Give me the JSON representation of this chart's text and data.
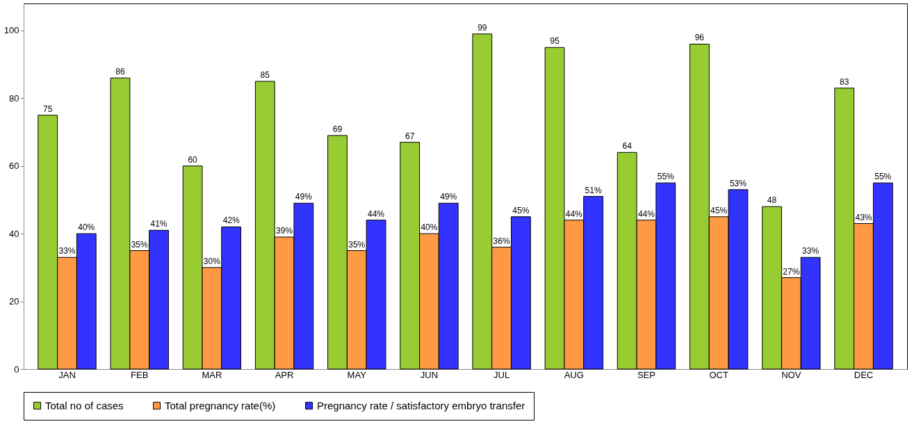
{
  "chart_data": {
    "type": "bar",
    "categories": [
      "JAN",
      "FEB",
      "MAR",
      "APR",
      "MAY",
      "JUN",
      "JUL",
      "AUG",
      "SEP",
      "OCT",
      "NOV",
      "DEC"
    ],
    "series": [
      {
        "name": "Total no of cases",
        "color": "#99cc33",
        "values": [
          75,
          86,
          60,
          85,
          69,
          67,
          99,
          95,
          64,
          96,
          48,
          83
        ],
        "value_labels": [
          "75",
          "86",
          "60",
          "85",
          "69",
          "67",
          "99",
          "95",
          "64",
          "96",
          "48",
          "83"
        ]
      },
      {
        "name": "Total pregnancy rate(%)",
        "color": "#ff9944",
        "values": [
          33,
          35,
          30,
          39,
          35,
          40,
          36,
          44,
          44,
          45,
          27,
          43
        ],
        "value_labels": [
          "33%",
          "35%",
          "30%",
          "39%",
          "35%",
          "40%",
          "36%",
          "44%",
          "44%",
          "45%",
          "27%",
          "43%"
        ]
      },
      {
        "name": "Pregnancy rate / satisfactory embryo transfer",
        "color": "#3333ff",
        "values": [
          40,
          41,
          42,
          49,
          44,
          49,
          45,
          51,
          55,
          53,
          33,
          55
        ],
        "value_labels": [
          "40%",
          "41%",
          "42%",
          "49%",
          "44%",
          "49%",
          "45%",
          "51%",
          "55%",
          "53%",
          "33%",
          "55%"
        ]
      }
    ],
    "ylim": [
      0,
      108
    ],
    "yticks": [
      0,
      20,
      40,
      60,
      80,
      100
    ],
    "grid": false,
    "legend": "bottom"
  }
}
